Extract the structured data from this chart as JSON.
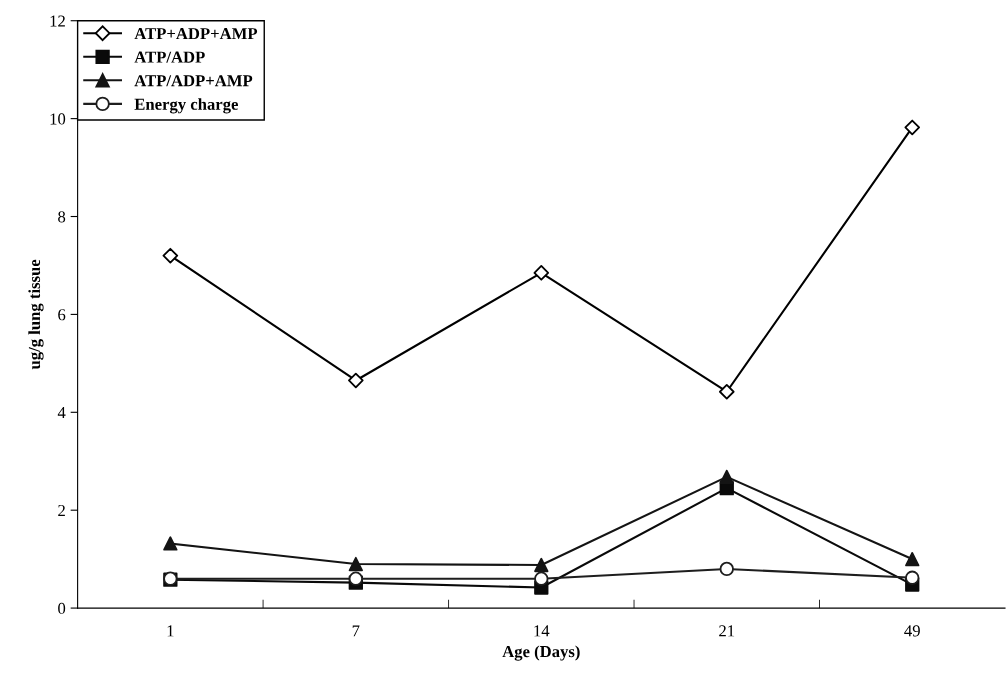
{
  "chart_data": {
    "type": "line",
    "xlabel": "Age (Days)",
    "ylabel": "ug/g lung tissue",
    "categories": [
      "1",
      "7",
      "14",
      "21",
      "49"
    ],
    "series": [
      {
        "name": "ATP+ADP+AMP",
        "color": "#000000",
        "marker": "diamond",
        "values": [
          7.2,
          4.65,
          6.85,
          4.42,
          9.82
        ]
      },
      {
        "name": "ATP/ADP",
        "color": "#0a0a0a",
        "marker": "square",
        "values": [
          0.58,
          0.52,
          0.42,
          2.45,
          0.48
        ]
      },
      {
        "name": "ATP/ADP+AMP",
        "color": "#141414",
        "marker": "triangle",
        "values": [
          1.32,
          0.9,
          0.88,
          2.68,
          1.0
        ]
      },
      {
        "name": "Energy charge",
        "color": "#1e1e1e",
        "marker": "circle",
        "values": [
          0.6,
          0.6,
          0.6,
          0.8,
          0.62
        ]
      }
    ],
    "ylim": [
      0,
      12
    ],
    "yticks": [
      0,
      2,
      4,
      6,
      8,
      10,
      12
    ],
    "grid": false,
    "legend": "top left",
    "line_style": "solid"
  }
}
